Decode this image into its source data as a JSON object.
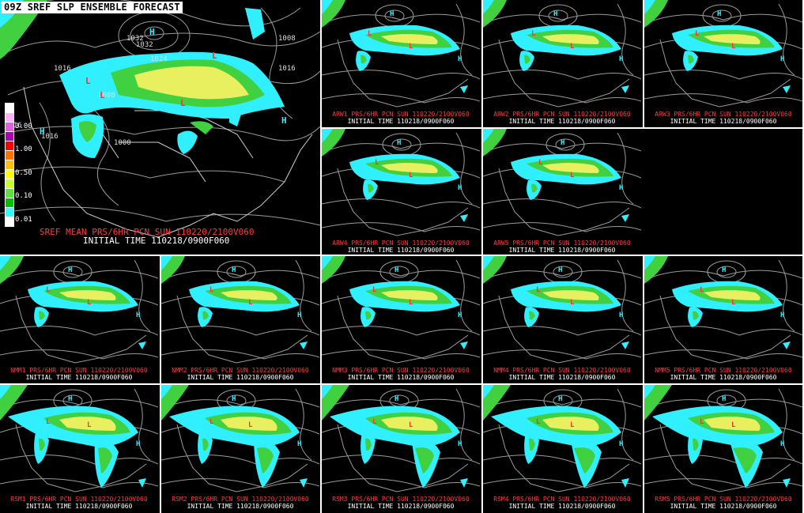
{
  "header": {
    "title": "09Z SREF SLP ENSEMBLE FORECAST"
  },
  "mean_panel": {
    "caption": "SREF MEAN PRS/6HR PCN  SUN 110220/2100V060",
    "init": "INITIAL TIME 110218/0900F060",
    "isobars": [
      "1032",
      "1032",
      "1024",
      "1016",
      "1008",
      "1016",
      "1016",
      "1016",
      "1000",
      "1008"
    ],
    "highs": [
      "H",
      "H",
      "H"
    ],
    "lows": [
      "L",
      "L",
      "L",
      "L"
    ]
  },
  "legend": {
    "levels": [
      "3.00",
      "1.00",
      "0.50",
      "0.10",
      "0.01"
    ],
    "colors": [
      "#ffffff",
      "#ffb3ff",
      "#e060e0",
      "#b000b0",
      "#ff0000",
      "#ff7000",
      "#ffc000",
      "#ffff00",
      "#c8ff30",
      "#60e040",
      "#00c000",
      "#30ffff",
      "#ffffff"
    ]
  },
  "colors": {
    "cyan": "#30f0ff",
    "green": "#40d040",
    "yellow": "#e8f060",
    "red": "#ff3030",
    "gray": "#9a9a9a"
  },
  "members": [
    {
      "caption": "ARW1 PRS/6HR PCN  SUN 110220/2100V060",
      "init": "INITIAL TIME 110218/0900F060"
    },
    {
      "caption": "ARW2 PRS/6HR PCN  SUN 110220/2100V060",
      "init": "INITIAL TIME 110218/0900F060"
    },
    {
      "caption": "ARW3 PRS/6HR PCN  SUN 110220/2100V060",
      "init": "INITIAL TIME 110218/0900F060"
    },
    {
      "caption": "ARW4 PRS/6HR PCN  SUN 110220/2100V060",
      "init": "INITIAL TIME 110218/0900F060"
    },
    {
      "caption": "ARW5 PRS/6HR PCN  SUN 110220/2100V060",
      "init": "INITIAL TIME 110218/0900F060"
    },
    {
      "caption": "NMM1 PRS/6HR PCN  SUN 110220/2100V060",
      "init": "INITIAL TIME 110218/0900F060"
    },
    {
      "caption": "NMM2 PRS/6HR PCN  SUN 110220/2100V060",
      "init": "INITIAL TIME 110218/0900F060"
    },
    {
      "caption": "NMM3 PRS/6HR PCN  SUN 110220/2100V060",
      "init": "INITIAL TIME 110218/0900F060"
    },
    {
      "caption": "NMM4 PRS/6HR PCN  SUN 110220/2100V060",
      "init": "INITIAL TIME 110218/0900F060"
    },
    {
      "caption": "NMM5 PRS/6HR PCN  SUN 110220/2100V060",
      "init": "INITIAL TIME 110218/0900F060"
    },
    {
      "caption": "RSM1 PRS/6HR PCN  SUN 110220/2100V060",
      "init": "INITIAL TIME 110218/0900F060"
    },
    {
      "caption": "RSM2 PRS/6HR PCN  SUN 110220/2100V060",
      "init": "INITIAL TIME 110218/0900F060"
    },
    {
      "caption": "RSM3 PRS/6HR PCN  SUN 110220/2100V060",
      "init": "INITIAL TIME 110218/0900F060"
    },
    {
      "caption": "RSM4 PRS/6HR PCN  SUN 110220/2100V060",
      "init": "INITIAL TIME 110218/0900F060"
    },
    {
      "caption": "RSM5 PRS/6HR PCN  SUN 110220/2100V060",
      "init": "INITIAL TIME 110218/0900F060"
    }
  ]
}
